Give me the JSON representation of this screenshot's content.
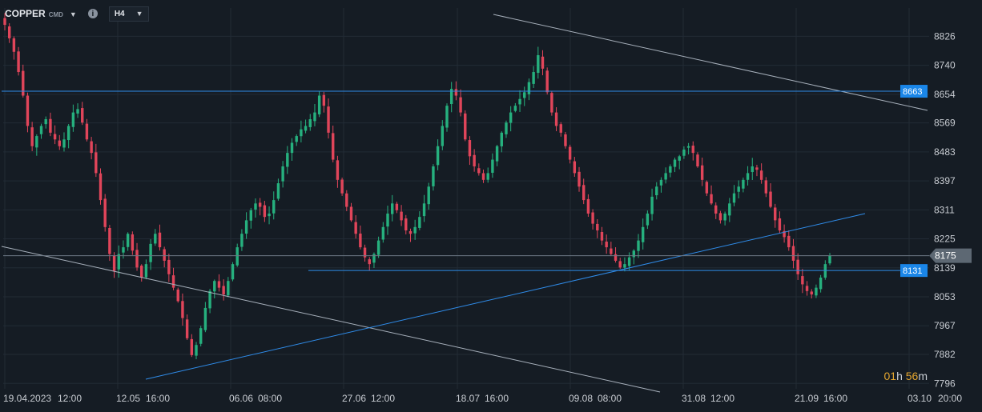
{
  "header": {
    "symbol": "COPPER",
    "symbol_sub": "CMD",
    "timeframe": "H4",
    "caret": "▼",
    "info_glyph": "i"
  },
  "countdown": {
    "hours": "01",
    "h_unit": "h",
    "minutes": "56",
    "m_unit": "m"
  },
  "colors": {
    "background": "#151c24",
    "grid": "#222b35",
    "up": "#26b07e",
    "down": "#e0455a",
    "trendline_blue": "#2f8be8",
    "trendline_gray": "#a7b0bb",
    "price_line": "#6d7885",
    "label_blue_bg": "#1a86e8",
    "label_current_bg": "#5d6873",
    "axis_text": "#c8ccd2"
  },
  "chart_data": {
    "type": "candlestick",
    "instrument": "COPPER",
    "timeframe": "H4",
    "ylim": [
      7780,
      8910
    ],
    "y_ticks": [
      8826,
      8740,
      8654,
      8569,
      8483,
      8397,
      8311,
      8225,
      8139,
      8053,
      7967,
      7882,
      7796
    ],
    "x_ticks": [
      "19.04.2023",
      "12:00",
      "12.05",
      "16:00",
      "06.06",
      "08:00",
      "27.06",
      "12:00",
      "18.07",
      "16:00",
      "09.08",
      "08:00",
      "31.08",
      "12:00",
      "21.09",
      "16:00",
      "03.10",
      "20:00"
    ],
    "current_price": 8175,
    "horizontal_levels": [
      8663,
      8131
    ],
    "closes": [
      8860,
      8820,
      8780,
      8720,
      8650,
      8560,
      8500,
      8530,
      8560,
      8580,
      8540,
      8520,
      8500,
      8520,
      8560,
      8600,
      8610,
      8570,
      8520,
      8480,
      8420,
      8340,
      8260,
      8180,
      8130,
      8180,
      8200,
      8240,
      8190,
      8140,
      8110,
      8150,
      8210,
      8240,
      8200,
      8160,
      8120,
      8080,
      8040,
      7990,
      7930,
      7880,
      7910,
      7960,
      8020,
      8070,
      8100,
      8080,
      8060,
      8100,
      8150,
      8200,
      8240,
      8280,
      8310,
      8330,
      8320,
      8290,
      8300,
      8340,
      8390,
      8440,
      8480,
      8510,
      8530,
      8550,
      8560,
      8580,
      8600,
      8650,
      8620,
      8540,
      8460,
      8400,
      8360,
      8320,
      8280,
      8240,
      8200,
      8170,
      8150,
      8180,
      8220,
      8260,
      8300,
      8330,
      8310,
      8280,
      8250,
      8240,
      8260,
      8290,
      8330,
      8380,
      8440,
      8500,
      8560,
      8620,
      8670,
      8650,
      8600,
      8520,
      8470,
      8440,
      8420,
      8400,
      8420,
      8460,
      8500,
      8540,
      8570,
      8600,
      8620,
      8640,
      8660,
      8690,
      8720,
      8770,
      8730,
      8660,
      8600,
      8560,
      8540,
      8500,
      8460,
      8420,
      8380,
      8340,
      8300,
      8270,
      8250,
      8220,
      8200,
      8180,
      8160,
      8140,
      8150,
      8170,
      8190,
      8220,
      8260,
      8300,
      8350,
      8380,
      8400,
      8420,
      8440,
      8460,
      8470,
      8490,
      8500,
      8480,
      8440,
      8400,
      8360,
      8330,
      8300,
      8280,
      8300,
      8330,
      8360,
      8380,
      8400,
      8420,
      8440,
      8430,
      8400,
      8360,
      8320,
      8280,
      8250,
      8230,
      8200,
      8160,
      8120,
      8090,
      8070,
      8060,
      8080,
      8110,
      8150,
      8175
    ],
    "title": "",
    "xlabel": "",
    "ylabel": ""
  }
}
